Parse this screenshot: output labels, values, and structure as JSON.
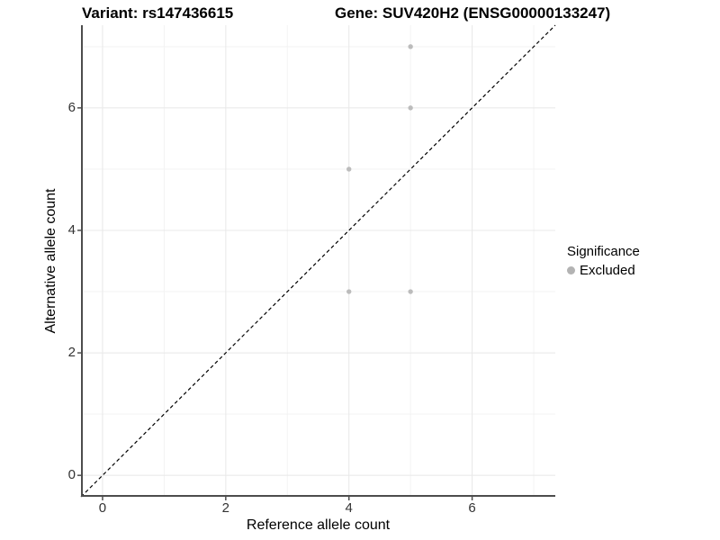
{
  "chart_data": {
    "type": "scatter",
    "title_left": "Variant: rs147436615",
    "title_right": "Gene: SUV420H2 (ENSG00000133247)",
    "xlabel": "Reference allele count",
    "ylabel": "Alternative allele count",
    "xlim": [
      -0.35,
      7.35
    ],
    "ylim": [
      -0.35,
      7.35
    ],
    "x_major_ticks": [
      0,
      2,
      4,
      6
    ],
    "y_major_ticks": [
      0,
      2,
      4,
      6
    ],
    "x_tick_labels": [
      "0",
      "2",
      "4",
      "6"
    ],
    "y_tick_labels": [
      "0",
      "2",
      "4",
      "6"
    ],
    "x_minor_gridlines": [
      1,
      3,
      5,
      7
    ],
    "y_minor_gridlines": [
      1,
      3,
      5,
      7
    ],
    "grid": true,
    "series": [
      {
        "name": "Excluded",
        "color": "#bcbcbc",
        "points": [
          [
            5,
            7
          ],
          [
            5,
            6
          ],
          [
            4,
            5
          ],
          [
            4,
            3
          ],
          [
            5,
            3
          ]
        ]
      }
    ],
    "reference_line": {
      "type": "identity",
      "style": "dashed",
      "color": "#000000",
      "from": [
        -0.35,
        -0.35
      ],
      "to": [
        7.35,
        7.35
      ]
    },
    "legend": {
      "position": "right",
      "title": "Significance",
      "entries": [
        {
          "label": "Excluded",
          "color": "#b3b3b3"
        }
      ]
    },
    "colors": {
      "background": "#ffffff",
      "major_grid": "#e8e8e8",
      "minor_grid": "#f3f3f3",
      "axis_line": "#4d4d4d",
      "tick_label": "#333333",
      "point": "#bcbcbc",
      "dashed_line": "#000000"
    }
  }
}
